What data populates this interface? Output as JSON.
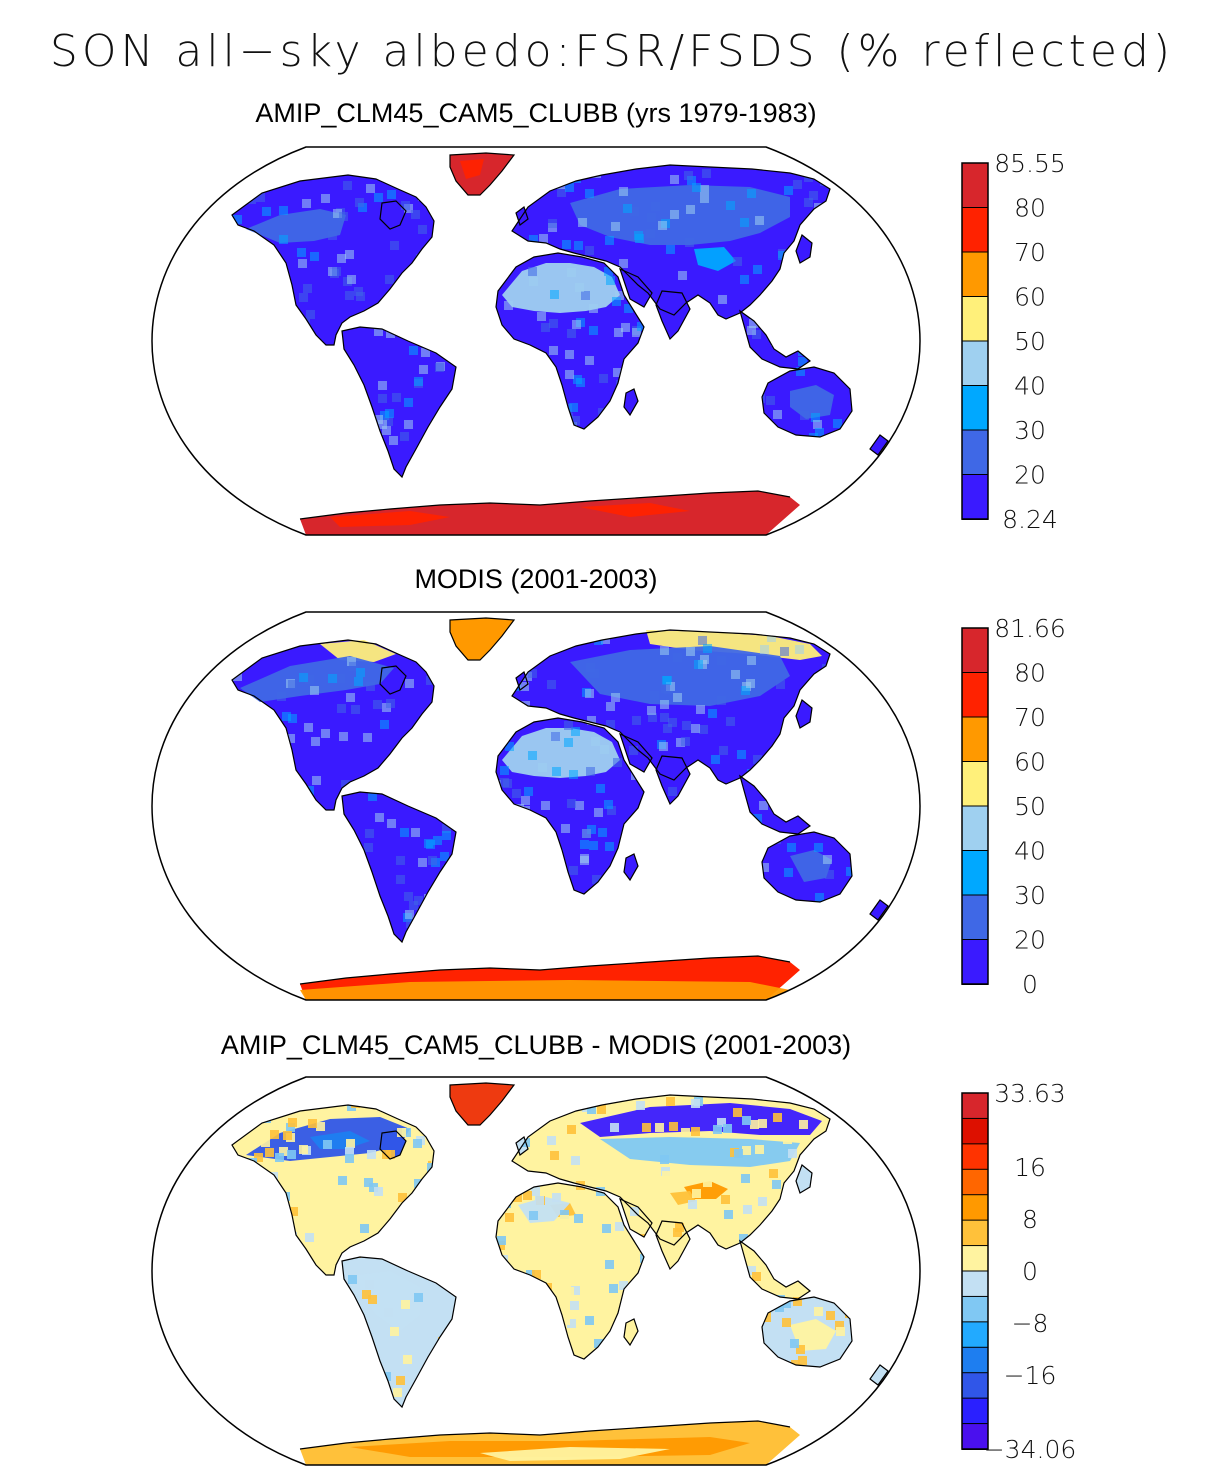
{
  "title": "SON all−sky albedo:FSR/FSDS (% reflected)",
  "panels": [
    {
      "title": "AMIP_CLM45_CAM5_CLUBB (yrs 1979-1983)",
      "type": "model",
      "colorbar": {
        "labels": [
          "85.55",
          "80",
          "70",
          "60",
          "50",
          "40",
          "30",
          "20",
          "8.24"
        ],
        "colors": [
          "#d7262c",
          "#ff2200",
          "#ff9900",
          "#fff07a",
          "#9fd0f0",
          "#00a8ff",
          "#3f68e6",
          "#3a1aff"
        ]
      }
    },
    {
      "title": "MODIS (2001-2003)",
      "type": "obs",
      "colorbar": {
        "labels": [
          "81.66",
          "80",
          "70",
          "60",
          "50",
          "40",
          "30",
          "20",
          "0"
        ],
        "colors": [
          "#d7262c",
          "#ff2200",
          "#ff9900",
          "#fff07a",
          "#9fd0f0",
          "#00a8ff",
          "#3f68e6",
          "#3a1aff"
        ]
      }
    },
    {
      "title": "AMIP_CLM45_CAM5_CLUBB - MODIS (2001-2003)",
      "type": "diff",
      "colorbar": {
        "labels": [
          "33.63",
          "16",
          "8",
          "0",
          "−8",
          "−16",
          "−34.06"
        ],
        "label_fractions": [
          0.0,
          0.2083,
          0.3542,
          0.5,
          0.6458,
          0.7917,
          1.0
        ],
        "colors": [
          "#d7262c",
          "#dd1000",
          "#ff3300",
          "#ff6600",
          "#ff9900",
          "#ffc13a",
          "#fff3a0",
          "#c3e0f3",
          "#80c8f3",
          "#22aaff",
          "#1e7ef0",
          "#3056e8",
          "#2a20ff",
          "#4a10ee"
        ]
      }
    }
  ]
}
